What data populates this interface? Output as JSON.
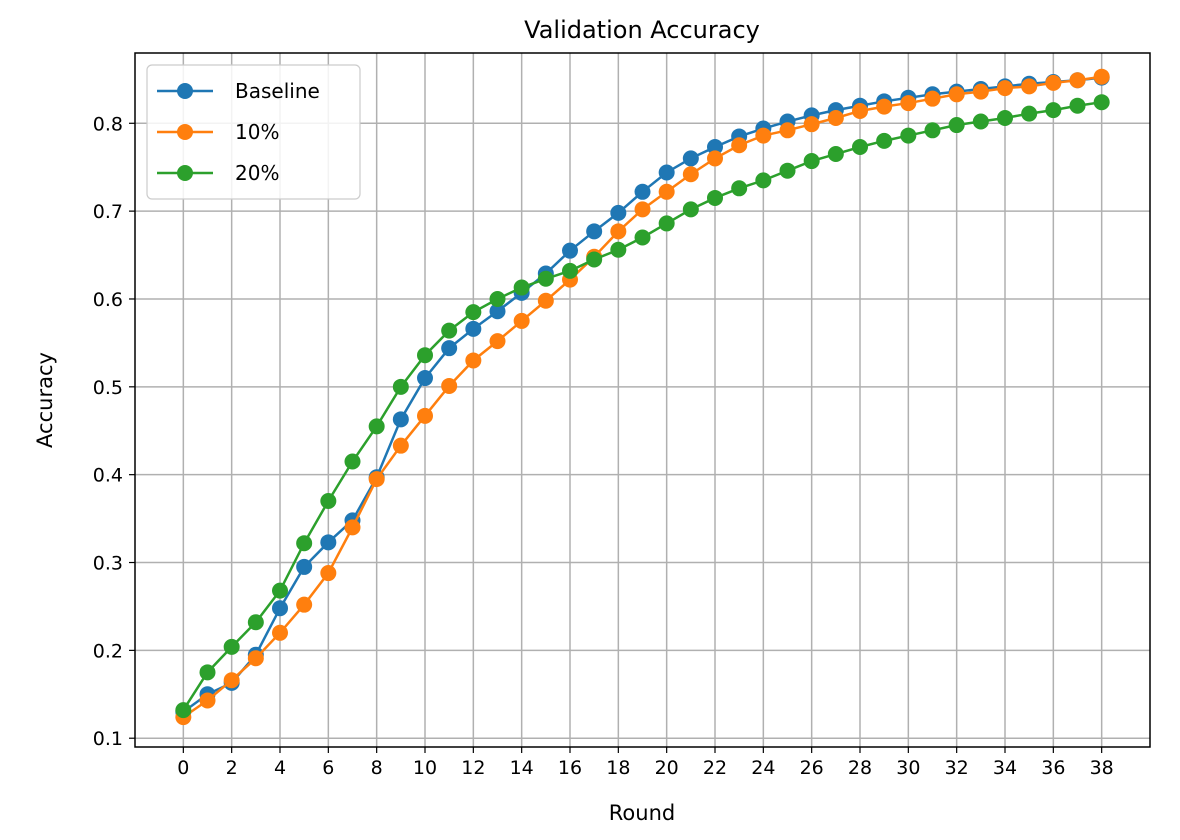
{
  "chart_data": {
    "type": "line",
    "title": "Validation Accuracy",
    "xlabel": "Round",
    "ylabel": "Accuracy",
    "xlim": [
      -2,
      40
    ],
    "ylim": [
      0.09,
      0.88
    ],
    "xticks": [
      0,
      2,
      4,
      6,
      8,
      10,
      12,
      14,
      16,
      18,
      20,
      22,
      24,
      26,
      28,
      30,
      32,
      34,
      36,
      38
    ],
    "yticks": [
      0.1,
      0.2,
      0.3,
      0.4,
      0.5,
      0.6,
      0.7,
      0.8
    ],
    "grid": true,
    "legend_position": "top-left",
    "x": [
      0,
      1,
      2,
      3,
      4,
      5,
      6,
      7,
      8,
      9,
      10,
      11,
      12,
      13,
      14,
      15,
      16,
      17,
      18,
      19,
      20,
      21,
      22,
      23,
      24,
      25,
      26,
      27,
      28,
      29,
      30,
      31,
      32,
      33,
      34,
      35,
      36,
      37,
      38
    ],
    "series": [
      {
        "name": "Baseline",
        "color": "#1f77b4",
        "values": [
          0.13,
          0.15,
          0.163,
          0.195,
          0.248,
          0.295,
          0.323,
          0.348,
          0.397,
          0.463,
          0.51,
          0.544,
          0.566,
          0.586,
          0.607,
          0.629,
          0.655,
          0.677,
          0.698,
          0.722,
          0.744,
          0.76,
          0.773,
          0.785,
          0.794,
          0.802,
          0.809,
          0.815,
          0.82,
          0.825,
          0.829,
          0.833,
          0.836,
          0.839,
          0.842,
          0.845,
          0.847,
          0.849,
          0.852
        ]
      },
      {
        "name": "10%",
        "color": "#ff7f0e",
        "values": [
          0.124,
          0.143,
          0.166,
          0.191,
          0.22,
          0.252,
          0.288,
          0.34,
          0.395,
          0.433,
          0.467,
          0.501,
          0.53,
          0.552,
          0.575,
          0.598,
          0.622,
          0.648,
          0.677,
          0.702,
          0.722,
          0.742,
          0.76,
          0.775,
          0.786,
          0.792,
          0.799,
          0.806,
          0.814,
          0.819,
          0.823,
          0.828,
          0.833,
          0.836,
          0.84,
          0.842,
          0.846,
          0.849,
          0.853
        ]
      },
      {
        "name": "20%",
        "color": "#2ca02c",
        "values": [
          0.132,
          0.175,
          0.204,
          0.232,
          0.268,
          0.322,
          0.37,
          0.415,
          0.455,
          0.5,
          0.536,
          0.564,
          0.585,
          0.6,
          0.613,
          0.623,
          0.632,
          0.645,
          0.656,
          0.67,
          0.686,
          0.702,
          0.715,
          0.726,
          0.735,
          0.746,
          0.757,
          0.765,
          0.773,
          0.78,
          0.786,
          0.792,
          0.798,
          0.802,
          0.806,
          0.811,
          0.815,
          0.82,
          0.824
        ]
      }
    ]
  }
}
